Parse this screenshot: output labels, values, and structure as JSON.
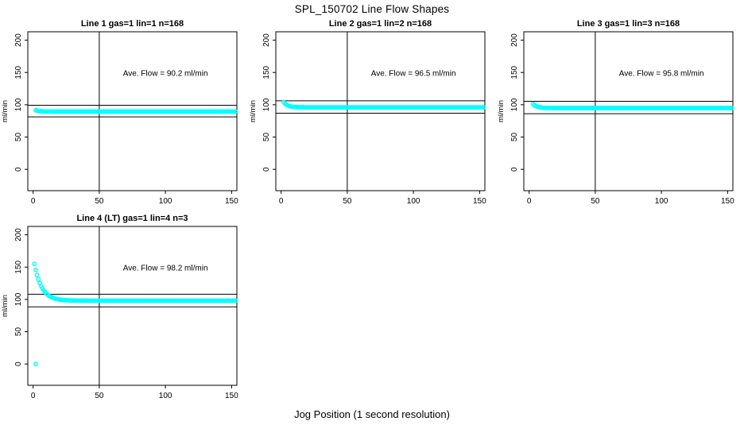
{
  "page": {
    "main_title": "SPL_150702  Line Flow Shapes",
    "x_axis_label": "Jog Position (1 second resolution)"
  },
  "colors": {
    "series": "#00ffff",
    "axis": "#000000",
    "text": "#000000",
    "background": "#ffffff"
  },
  "chart_data": [
    {
      "type": "scatter",
      "title": "Line 1 gas=1 lin=1 n=168",
      "annotation": "Ave. Flow =  90.2  ml/min",
      "ave_flow_ml_min": 90.2,
      "ylabel": "ml/min",
      "xticks": [
        0,
        50,
        100,
        150
      ],
      "yticks": [
        0,
        50,
        100,
        150,
        200
      ],
      "xlim": [
        -4,
        154
      ],
      "ylim": [
        -33,
        213
      ],
      "vline_x": 50,
      "hlines": [
        99.2,
        81.2
      ],
      "marker": "open-circle",
      "series": {
        "x_start": 2,
        "x_end": 153,
        "plateau": 89.5,
        "initial_extra": 2,
        "decay_tau": 2.5,
        "outliers": []
      }
    },
    {
      "type": "scatter",
      "title": "Line 2 gas=1 lin=2 n=168",
      "annotation": "Ave. Flow =  96.5  ml/min",
      "ave_flow_ml_min": 96.5,
      "ylabel": "ml/min",
      "xticks": [
        0,
        50,
        100,
        150
      ],
      "yticks": [
        0,
        50,
        100,
        150,
        200
      ],
      "xlim": [
        -4,
        154
      ],
      "ylim": [
        -33,
        213
      ],
      "vline_x": 50,
      "hlines": [
        106.2,
        86.9
      ],
      "marker": "open-circle",
      "series": {
        "x_start": 2,
        "x_end": 153,
        "plateau": 96,
        "initial_extra": 8,
        "decay_tau": 3,
        "outliers": []
      }
    },
    {
      "type": "scatter",
      "title": "Line 3 gas=1 lin=3 n=168",
      "annotation": "Ave. Flow =  95.8  ml/min",
      "ave_flow_ml_min": 95.8,
      "ylabel": "ml/min",
      "xticks": [
        0,
        50,
        100,
        150
      ],
      "yticks": [
        0,
        50,
        100,
        150,
        200
      ],
      "xlim": [
        -4,
        154
      ],
      "ylim": [
        -33,
        213
      ],
      "vline_x": 50,
      "hlines": [
        105.4,
        86.2
      ],
      "marker": "open-circle",
      "series": {
        "x_start": 3,
        "x_end": 153,
        "plateau": 95,
        "initial_extra": 6,
        "decay_tau": 3,
        "outliers": []
      }
    },
    {
      "type": "scatter",
      "title": "Line 4 (LT) gas=1 lin=4 n=3",
      "annotation": "Ave. Flow =  98.2  ml/min",
      "ave_flow_ml_min": 98.2,
      "ylabel": "ml/min",
      "xticks": [
        0,
        50,
        100,
        150
      ],
      "yticks": [
        0,
        50,
        100,
        150,
        200
      ],
      "xlim": [
        -4,
        154
      ],
      "ylim": [
        -33,
        213
      ],
      "vline_x": 50,
      "hlines": [
        108.0,
        88.4
      ],
      "marker": "open-circle",
      "series": {
        "x_start": 1,
        "x_end": 153,
        "plateau": 98,
        "initial_extra": 57,
        "decay_tau": 5.5,
        "outliers": [
          [
            2,
            0
          ]
        ]
      }
    }
  ]
}
